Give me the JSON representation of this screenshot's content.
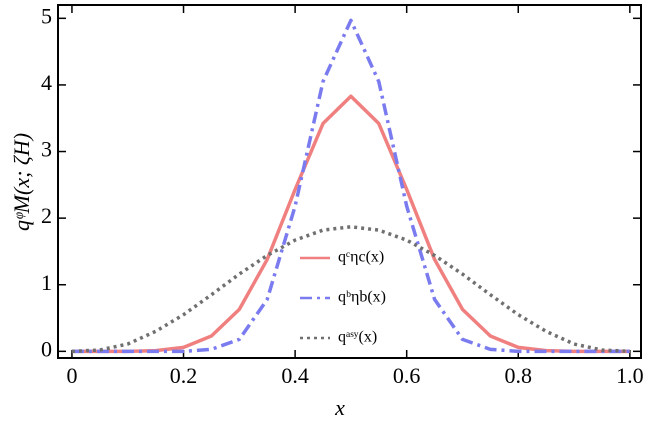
{
  "chart_data": {
    "type": "line",
    "xlabel": "x",
    "ylabel": "qᵠM(x; ζH)",
    "x": [
      0,
      0.05,
      0.1,
      0.15,
      0.2,
      0.25,
      0.3,
      0.35,
      0.4,
      0.45,
      0.5,
      0.55,
      0.6,
      0.65,
      0.7,
      0.75,
      0.8,
      0.85,
      0.9,
      0.95,
      1
    ],
    "series": [
      {
        "name": "qᶜηc(x)",
        "color": "#f08080",
        "dash": "solid",
        "values": [
          0,
          0,
          0,
          0.01,
          0.06,
          0.23,
          0.63,
          1.38,
          2.43,
          3.42,
          3.83,
          3.42,
          2.43,
          1.38,
          0.63,
          0.23,
          0.06,
          0.01,
          0,
          0,
          0
        ]
      },
      {
        "name": "qᵇηb(x)",
        "color": "#7b7bf0",
        "dash": "dashdot",
        "values": [
          0,
          0,
          0,
          0,
          0,
          0.03,
          0.18,
          0.78,
          2.18,
          4.05,
          4.97,
          4.05,
          2.18,
          0.78,
          0.18,
          0.03,
          0,
          0,
          0,
          0,
          0
        ]
      },
      {
        "name": "qᵃˢʸ(x)",
        "color": "#707070",
        "dash": "dotted",
        "values": [
          0,
          0.02,
          0.11,
          0.3,
          0.55,
          0.85,
          1.16,
          1.44,
          1.67,
          1.82,
          1.87,
          1.82,
          1.67,
          1.44,
          1.16,
          0.85,
          0.55,
          0.3,
          0.11,
          0.02,
          0
        ]
      }
    ],
    "xlim": [
      -0.025,
      1.02
    ],
    "ylim": [
      -0.1,
      5.2
    ],
    "xticks": [
      0,
      0.2,
      0.4,
      0.6,
      0.8,
      {
        "value": 1,
        "label": "1.0"
      }
    ],
    "yticks": [
      0,
      1,
      2,
      3,
      4,
      5
    ],
    "grid": false
  }
}
